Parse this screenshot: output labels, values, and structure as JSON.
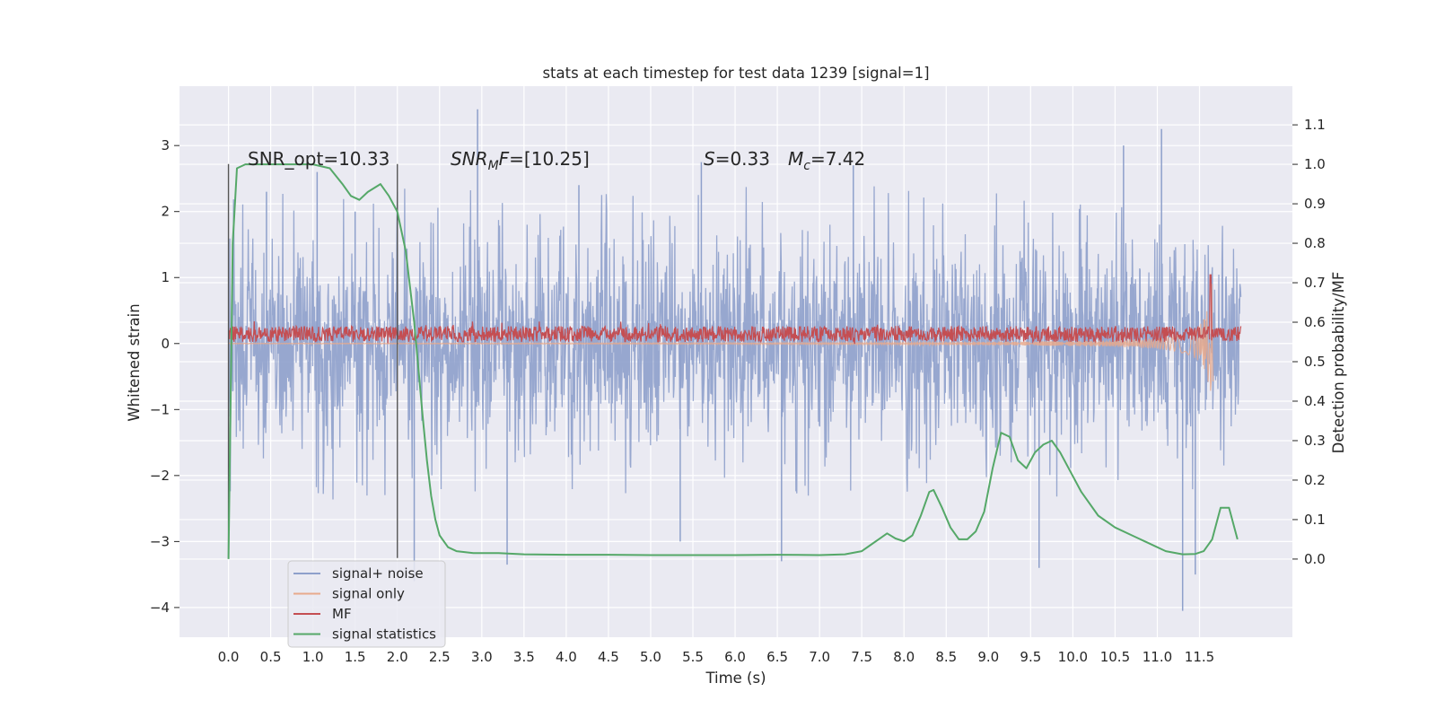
{
  "chart_data": {
    "type": "line",
    "title": "stats at each timestep for test data 1239 [signal=1]",
    "xlabel": "Time (s)",
    "ylabel_left": "Whitened strain",
    "ylabel_right": "Detection probability/MF",
    "xlim": [
      -0.58,
      12.6
    ],
    "ylim_left": [
      -4.45,
      3.9
    ],
    "ylim_right": [
      -0.198,
      1.198
    ],
    "grid": true,
    "x_ticks": [
      "0.0",
      "0.5",
      "1.0",
      "1.5",
      "2.0",
      "2.5",
      "3.0",
      "3.5",
      "4.0",
      "4.5",
      "5.0",
      "5.5",
      "6.0",
      "6.5",
      "7.0",
      "7.5",
      "8.0",
      "8.5",
      "9.0",
      "9.5",
      "10.0",
      "10.5",
      "11.0",
      "11.5"
    ],
    "y_ticks_left": [
      "3",
      "2",
      "1",
      "0",
      "−1",
      "−2",
      "−3",
      "−4"
    ],
    "y_ticks_right": [
      "1.1",
      "1.0",
      "0.9",
      "0.8",
      "0.7",
      "0.6",
      "0.5",
      "0.4",
      "0.3",
      "0.2",
      "0.1",
      "0.0"
    ],
    "annotations": {
      "snr_opt": "SNR_opt=10.33",
      "snr_mf": "[10.25]",
      "snr_mf_main": "SNR",
      "snr_mf_sub": "M",
      "snr_mf_tail": "F=",
      "s_main": "S",
      "s_value": "=0.33",
      "mc_main": "M",
      "mc_sub": "c",
      "mc_value": "=7.42"
    },
    "legend": {
      "position": "lower-left",
      "entries": [
        {
          "label": "signal+ noise",
          "color": "#8ea0cb"
        },
        {
          "label": "signal only",
          "color": "#e8a98c"
        },
        {
          "label": "MF",
          "color": "#c44e52"
        },
        {
          "label": "signal statistics",
          "color": "#55a868"
        }
      ]
    },
    "series": [
      {
        "name": "signal+ noise",
        "axis": "left",
        "color": "#8ea0cb",
        "x_range": [
          0.0,
          11.99
        ],
        "envelope_upper": 1.55,
        "envelope_lower": -1.45,
        "peaks": [
          [
            0.45,
            2.3
          ],
          [
            1.05,
            2.6
          ],
          [
            1.5,
            2.0
          ],
          [
            2.2,
            -3.6
          ],
          [
            2.95,
            3.55
          ],
          [
            3.3,
            -3.35
          ],
          [
            4.15,
            2.4
          ],
          [
            5.35,
            -3.0
          ],
          [
            5.6,
            2.75
          ],
          [
            6.55,
            -3.3
          ],
          [
            7.4,
            2.7
          ],
          [
            9.6,
            -3.4
          ],
          [
            10.6,
            3.0
          ],
          [
            11.05,
            3.25
          ],
          [
            11.3,
            -4.05
          ],
          [
            11.45,
            -3.5
          ]
        ]
      },
      {
        "name": "signal only",
        "axis": "left",
        "color": "#e8a98c",
        "x_range": [
          0.0,
          11.66
        ],
        "note": "chirp with amplitude growing toward merger",
        "peak_amplitude": 1.02,
        "merger_time": 11.63
      },
      {
        "name": "MF",
        "axis": "right",
        "color": "#c44e52",
        "x_range": [
          0.0,
          11.99
        ],
        "baseline": 0.57,
        "band_width": 0.04,
        "peak": [
          11.63,
          0.72
        ]
      },
      {
        "name": "signal statistics",
        "axis": "right",
        "color": "#55a868",
        "x": [
          0.0,
          0.05,
          0.1,
          0.2,
          0.3,
          0.45,
          0.6,
          0.8,
          1.0,
          1.2,
          1.35,
          1.45,
          1.55,
          1.65,
          1.8,
          1.9,
          2.0,
          2.1,
          2.2,
          2.25,
          2.3,
          2.35,
          2.4,
          2.45,
          2.5,
          2.6,
          2.7,
          2.9,
          3.2,
          3.5,
          4.0,
          4.5,
          5.0,
          5.5,
          6.0,
          6.5,
          7.0,
          7.3,
          7.5,
          7.6,
          7.7,
          7.8,
          7.9,
          8.0,
          8.1,
          8.2,
          8.3,
          8.35,
          8.45,
          8.55,
          8.65,
          8.75,
          8.85,
          8.95,
          9.05,
          9.15,
          9.25,
          9.35,
          9.45,
          9.55,
          9.65,
          9.75,
          9.85,
          9.95,
          10.1,
          10.3,
          10.5,
          10.7,
          10.9,
          11.1,
          11.3,
          11.45,
          11.55,
          11.65,
          11.75,
          11.85,
          11.95
        ],
        "y": [
          0.0,
          0.8,
          0.99,
          1.0,
          1.0,
          1.0,
          1.0,
          1.0,
          1.0,
          0.99,
          0.95,
          0.92,
          0.91,
          0.93,
          0.95,
          0.92,
          0.88,
          0.78,
          0.6,
          0.48,
          0.36,
          0.25,
          0.16,
          0.1,
          0.06,
          0.03,
          0.02,
          0.015,
          0.015,
          0.012,
          0.011,
          0.011,
          0.01,
          0.01,
          0.01,
          0.011,
          0.01,
          0.012,
          0.02,
          0.035,
          0.05,
          0.065,
          0.052,
          0.045,
          0.06,
          0.11,
          0.17,
          0.175,
          0.13,
          0.08,
          0.05,
          0.05,
          0.07,
          0.12,
          0.23,
          0.32,
          0.31,
          0.25,
          0.23,
          0.27,
          0.29,
          0.3,
          0.27,
          0.23,
          0.17,
          0.11,
          0.08,
          0.06,
          0.04,
          0.02,
          0.012,
          0.013,
          0.02,
          0.05,
          0.13,
          0.13,
          0.05
        ]
      }
    ],
    "vertical_markers": [
      0.0,
      2.0
    ]
  }
}
